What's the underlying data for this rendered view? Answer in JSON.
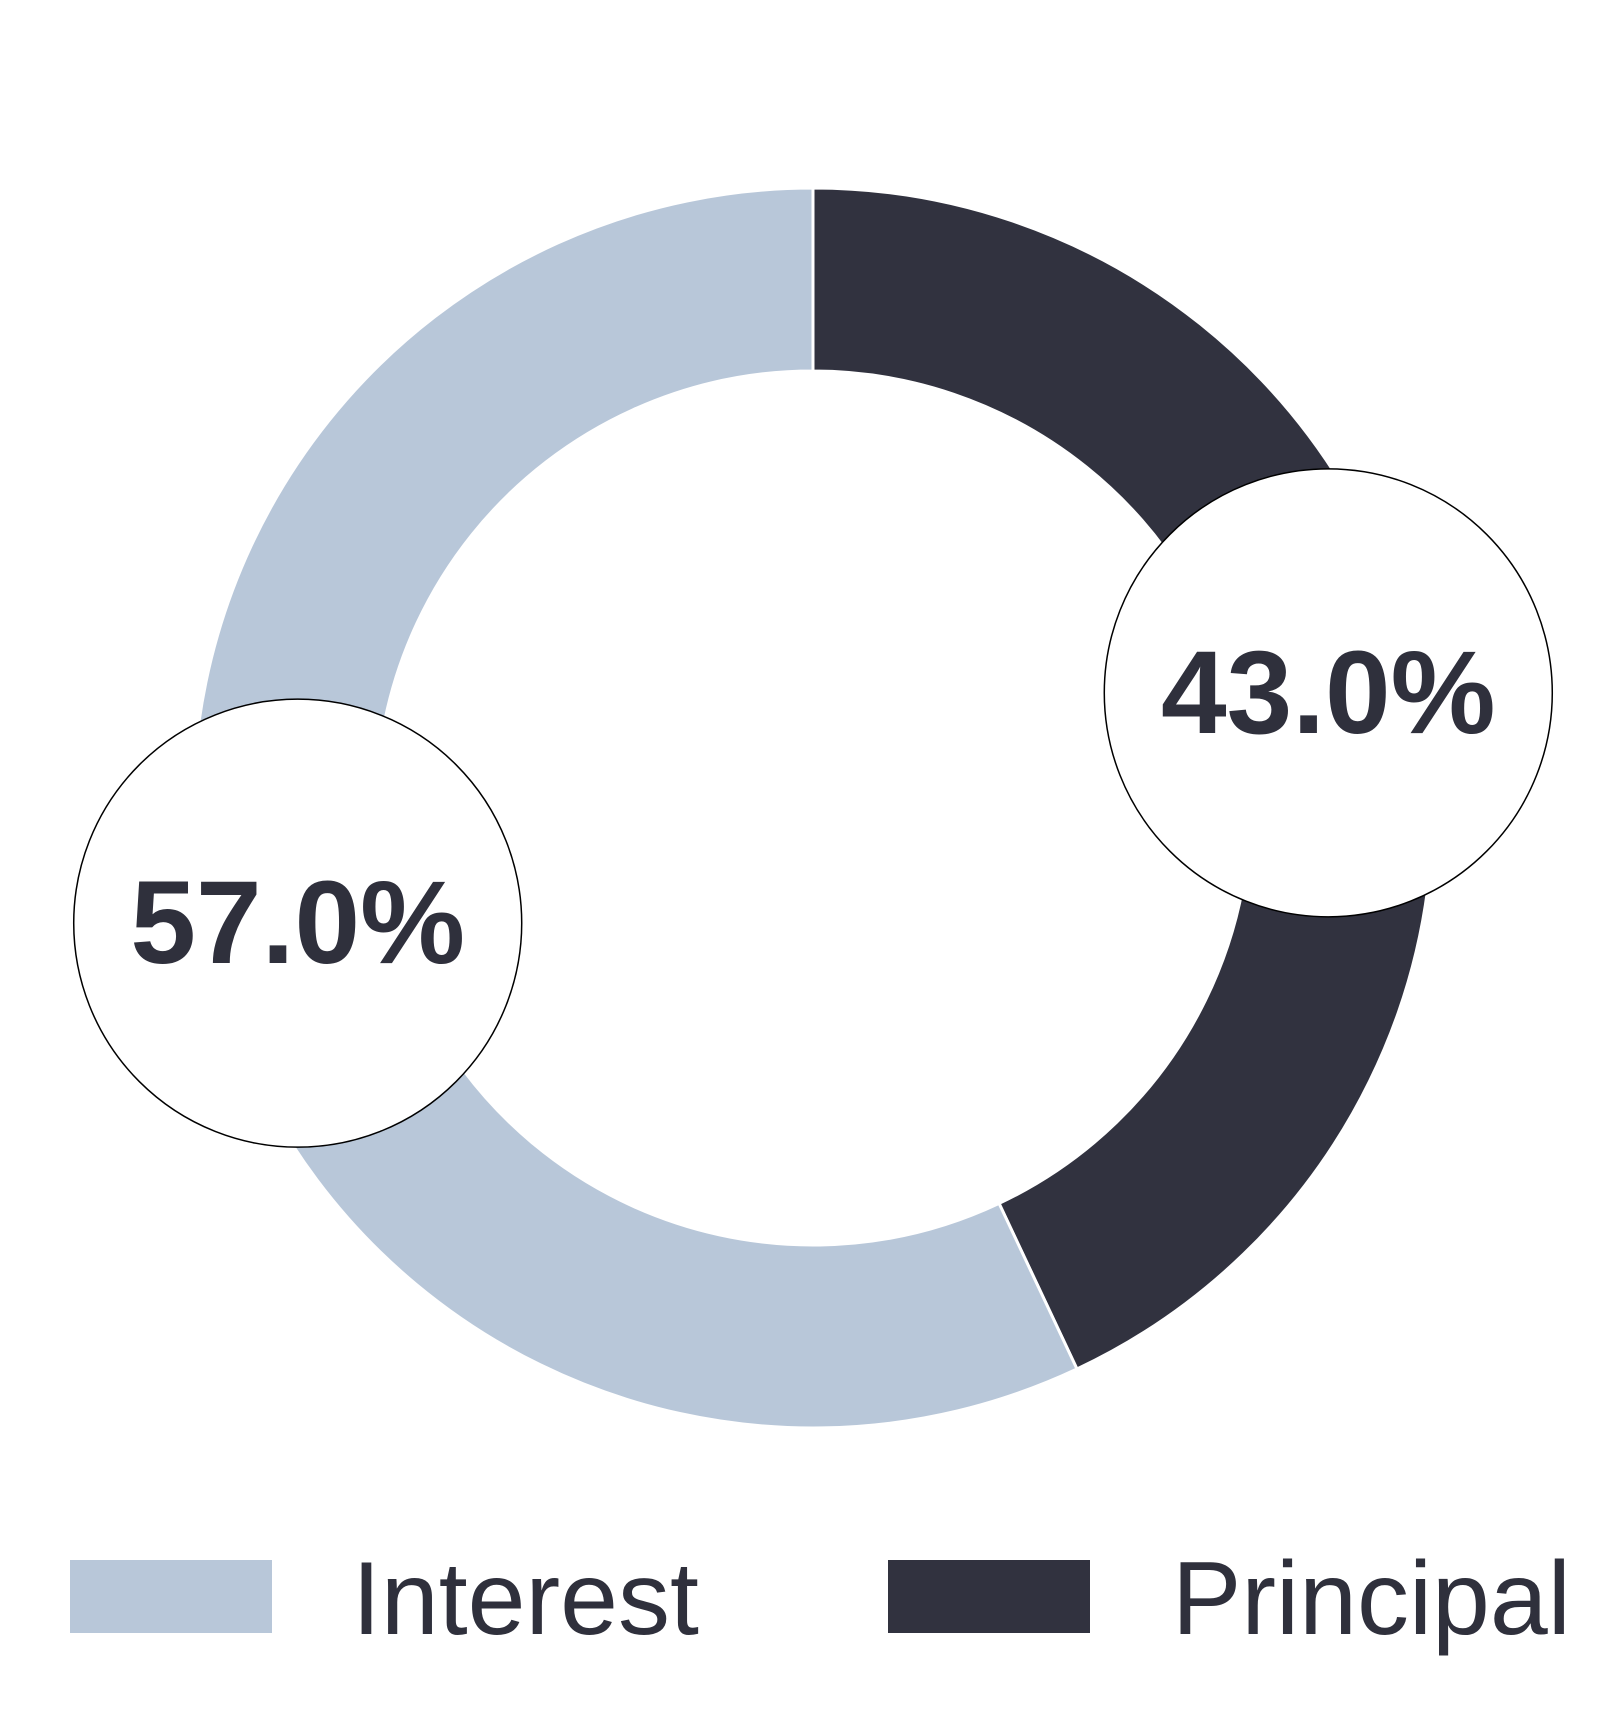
{
  "chart_data": {
    "type": "pie",
    "donut": true,
    "slices": [
      {
        "label": "Principal",
        "value": 43.0,
        "display": "43.0%",
        "color": "#31323f"
      },
      {
        "label": "Interest",
        "value": 57.0,
        "display": "57.0%",
        "color": "#b8c7d9"
      }
    ],
    "start_angle_deg": 0,
    "direction": "clockwise",
    "legend_position": "bottom",
    "legend": [
      {
        "label": "Interest",
        "color": "#b8c7d9"
      },
      {
        "label": "Principal",
        "color": "#31323f"
      }
    ],
    "text_color": "#2f303c"
  }
}
